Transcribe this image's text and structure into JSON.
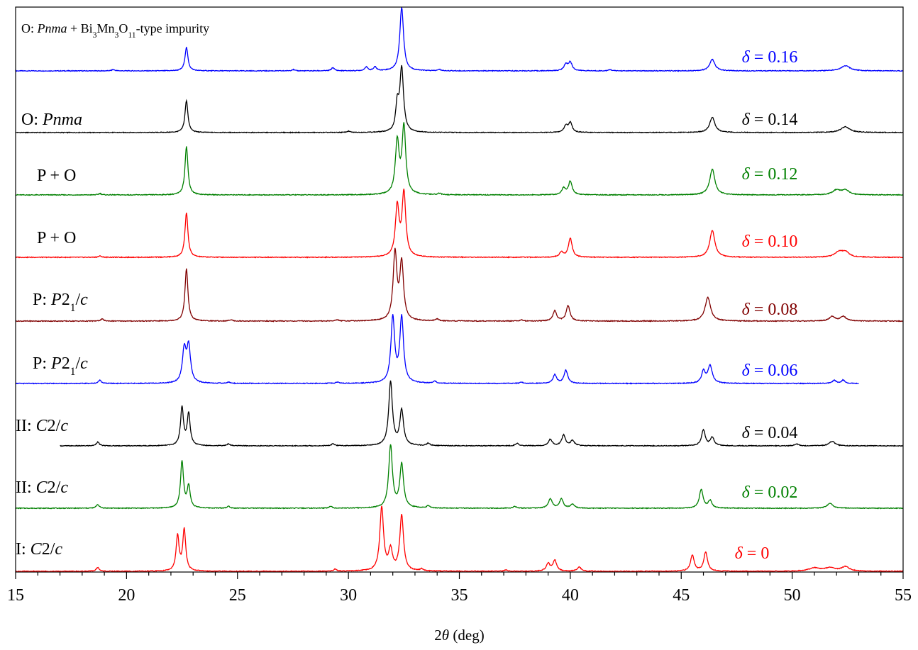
{
  "chart_data": {
    "type": "line",
    "xlabel_parts": [
      {
        "t": "2",
        "i": false
      },
      {
        "t": "θ",
        "i": true
      },
      {
        "t": " (deg)",
        "i": false
      }
    ],
    "xlim": [
      15,
      55
    ],
    "x_ticks": [
      15,
      20,
      25,
      30,
      35,
      40,
      45,
      50,
      55
    ],
    "x_tick_labels": [
      "15",
      "20",
      "25",
      "30",
      "35",
      "40",
      "45",
      "50",
      "55"
    ],
    "y_axis_visible": false,
    "grid": false,
    "series": [
      {
        "color": "#0000ff",
        "x_range": [
          15,
          55
        ],
        "peaks": [
          [
            19.4,
            0.02,
            0.08
          ],
          [
            22.7,
            0.37,
            0.08
          ],
          [
            27.5,
            0.02,
            0.08
          ],
          [
            29.3,
            0.05,
            0.08
          ],
          [
            30.8,
            0.06,
            0.08
          ],
          [
            31.2,
            0.06,
            0.08
          ],
          [
            32.4,
            1.0,
            0.1
          ],
          [
            34.1,
            0.02,
            0.08
          ],
          [
            39.8,
            0.1,
            0.1
          ],
          [
            40.0,
            0.13,
            0.1
          ],
          [
            41.8,
            0.02,
            0.08
          ],
          [
            46.4,
            0.18,
            0.14
          ],
          [
            52.4,
            0.08,
            0.25
          ]
        ],
        "sample_label": "δ = 0.16",
        "phase_label": [
          {
            "t": "O: ",
            "i": false
          },
          {
            "t": "Pnma",
            "i": true
          },
          {
            "t": " + Bi",
            "i": false
          },
          {
            "t": "3",
            "i": false,
            "sub": true
          },
          {
            "t": "Mn",
            "i": false
          },
          {
            "t": "3",
            "i": false,
            "sub": true
          },
          {
            "t": "O",
            "i": false
          },
          {
            "t": "11",
            "i": false,
            "sub": true
          },
          {
            "t": "-type impurity",
            "i": false
          }
        ]
      },
      {
        "color": "#000000",
        "x_range": [
          15,
          55
        ],
        "peaks": [
          [
            22.7,
            0.5,
            0.08
          ],
          [
            30.0,
            0.02,
            0.08
          ],
          [
            32.2,
            0.4,
            0.08
          ],
          [
            32.4,
            1.0,
            0.1
          ],
          [
            39.8,
            0.1,
            0.1
          ],
          [
            40.0,
            0.15,
            0.1
          ],
          [
            46.4,
            0.24,
            0.14
          ],
          [
            52.4,
            0.09,
            0.25
          ]
        ],
        "sample_label": "δ = 0.14",
        "phase_label": [
          {
            "t": "O: ",
            "i": false
          },
          {
            "t": "Pnma",
            "i": true
          }
        ]
      },
      {
        "color": "#008000",
        "x_range": [
          15,
          55
        ],
        "peaks": [
          [
            18.8,
            0.02,
            0.08
          ],
          [
            22.7,
            0.72,
            0.08
          ],
          [
            32.2,
            0.78,
            0.1
          ],
          [
            32.5,
            1.0,
            0.1
          ],
          [
            34.1,
            0.02,
            0.08
          ],
          [
            39.7,
            0.1,
            0.1
          ],
          [
            40.0,
            0.2,
            0.1
          ],
          [
            46.4,
            0.38,
            0.14
          ],
          [
            52.0,
            0.07,
            0.2
          ],
          [
            52.4,
            0.07,
            0.2
          ]
        ],
        "sample_label": "δ = 0.12",
        "phase_label": [
          {
            "t": "P + O",
            "i": false
          }
        ]
      },
      {
        "color": "#ff0000",
        "x_range": [
          15,
          55
        ],
        "peaks": [
          [
            18.8,
            0.02,
            0.08
          ],
          [
            22.7,
            0.7,
            0.08
          ],
          [
            32.2,
            0.78,
            0.1
          ],
          [
            32.5,
            1.0,
            0.1
          ],
          [
            39.6,
            0.08,
            0.1
          ],
          [
            40.0,
            0.3,
            0.1
          ],
          [
            46.4,
            0.42,
            0.14
          ],
          [
            52.1,
            0.08,
            0.2
          ],
          [
            52.4,
            0.08,
            0.2
          ]
        ],
        "sample_label": "δ = 0.10",
        "phase_label": [
          {
            "t": "P + O",
            "i": false
          }
        ]
      },
      {
        "color": "#800000",
        "x_range": [
          15,
          55
        ],
        "peaks": [
          [
            18.9,
            0.03,
            0.08
          ],
          [
            22.7,
            0.78,
            0.08
          ],
          [
            24.7,
            0.02,
            0.08
          ],
          [
            29.5,
            0.02,
            0.08
          ],
          [
            32.1,
            1.0,
            0.1
          ],
          [
            32.4,
            0.85,
            0.1
          ],
          [
            34.0,
            0.03,
            0.08
          ],
          [
            37.8,
            0.02,
            0.08
          ],
          [
            39.3,
            0.15,
            0.1
          ],
          [
            39.9,
            0.23,
            0.1
          ],
          [
            46.2,
            0.35,
            0.15
          ],
          [
            51.8,
            0.07,
            0.15
          ],
          [
            52.3,
            0.07,
            0.15
          ]
        ],
        "sample_label": "δ = 0.08",
        "phase_label": [
          {
            "t": "P: ",
            "i": false
          },
          {
            "t": "P",
            "i": true
          },
          {
            "t": "2",
            "i": false
          },
          {
            "t": "1",
            "i": false,
            "sub": true
          },
          {
            "t": "/",
            "i": false
          },
          {
            "t": "c",
            "i": true
          }
        ]
      },
      {
        "color": "#0000ff",
        "x_range": [
          15,
          53
        ],
        "peaks": [
          [
            18.8,
            0.05,
            0.08
          ],
          [
            22.6,
            0.5,
            0.1
          ],
          [
            22.8,
            0.55,
            0.1
          ],
          [
            24.6,
            0.02,
            0.08
          ],
          [
            29.5,
            0.02,
            0.08
          ],
          [
            32.0,
            1.0,
            0.1
          ],
          [
            32.4,
            1.0,
            0.1
          ],
          [
            33.9,
            0.03,
            0.08
          ],
          [
            37.8,
            0.02,
            0.08
          ],
          [
            39.3,
            0.13,
            0.1
          ],
          [
            39.8,
            0.2,
            0.1
          ],
          [
            46.0,
            0.18,
            0.1
          ],
          [
            46.3,
            0.27,
            0.12
          ],
          [
            51.9,
            0.05,
            0.1
          ],
          [
            52.3,
            0.05,
            0.1
          ]
        ],
        "sample_label": "δ = 0.06",
        "phase_label": [
          {
            "t": "P: ",
            "i": false
          },
          {
            "t": "P",
            "i": true
          },
          {
            "t": "2",
            "i": false
          },
          {
            "t": "1",
            "i": false,
            "sub": true
          },
          {
            "t": "/",
            "i": false
          },
          {
            "t": "c",
            "i": true
          }
        ]
      },
      {
        "color": "#000000",
        "x_range": [
          17,
          55
        ],
        "peaks": [
          [
            18.7,
            0.06,
            0.08
          ],
          [
            22.5,
            0.6,
            0.08
          ],
          [
            22.8,
            0.5,
            0.08
          ],
          [
            24.6,
            0.03,
            0.08
          ],
          [
            29.3,
            0.03,
            0.08
          ],
          [
            31.9,
            1.0,
            0.1
          ],
          [
            32.4,
            0.55,
            0.1
          ],
          [
            33.6,
            0.04,
            0.08
          ],
          [
            37.6,
            0.04,
            0.08
          ],
          [
            39.1,
            0.1,
            0.1
          ],
          [
            39.7,
            0.17,
            0.1
          ],
          [
            40.1,
            0.08,
            0.1
          ],
          [
            46.0,
            0.25,
            0.1
          ],
          [
            46.4,
            0.13,
            0.1
          ],
          [
            50.2,
            0.03,
            0.1
          ],
          [
            51.8,
            0.07,
            0.15
          ]
        ],
        "sample_label": "δ = 0.04",
        "phase_label": [
          {
            "t": "II: ",
            "i": false
          },
          {
            "t": "C",
            "i": true
          },
          {
            "t": "2/",
            "i": false
          },
          {
            "t": "c",
            "i": true
          }
        ]
      },
      {
        "color": "#008000",
        "x_range": [
          15,
          55
        ],
        "peaks": [
          [
            18.7,
            0.06,
            0.08
          ],
          [
            22.5,
            0.75,
            0.08
          ],
          [
            22.8,
            0.35,
            0.08
          ],
          [
            24.6,
            0.03,
            0.08
          ],
          [
            29.2,
            0.03,
            0.08
          ],
          [
            31.9,
            1.0,
            0.1
          ],
          [
            32.4,
            0.7,
            0.1
          ],
          [
            33.6,
            0.04,
            0.08
          ],
          [
            37.5,
            0.03,
            0.08
          ],
          [
            39.1,
            0.15,
            0.1
          ],
          [
            39.6,
            0.15,
            0.1
          ],
          [
            40.1,
            0.06,
            0.1
          ],
          [
            45.9,
            0.3,
            0.1
          ],
          [
            46.3,
            0.12,
            0.1
          ],
          [
            51.7,
            0.08,
            0.15
          ]
        ],
        "sample_label": "δ = 0.02",
        "phase_label": [
          {
            "t": "II: ",
            "i": false
          },
          {
            "t": "C",
            "i": true
          },
          {
            "t": "2/",
            "i": false
          },
          {
            "t": "c",
            "i": true
          }
        ]
      },
      {
        "color": "#ff0000",
        "x_range": [
          15,
          55
        ],
        "peaks": [
          [
            18.7,
            0.06,
            0.08
          ],
          [
            22.3,
            0.55,
            0.08
          ],
          [
            22.6,
            0.65,
            0.08
          ],
          [
            29.4,
            0.03,
            0.08
          ],
          [
            31.5,
            1.0,
            0.1
          ],
          [
            31.9,
            0.32,
            0.1
          ],
          [
            32.4,
            0.87,
            0.1
          ],
          [
            33.3,
            0.03,
            0.08
          ],
          [
            37.1,
            0.02,
            0.08
          ],
          [
            39.0,
            0.12,
            0.1
          ],
          [
            39.3,
            0.17,
            0.1
          ],
          [
            40.4,
            0.07,
            0.1
          ],
          [
            45.5,
            0.25,
            0.1
          ],
          [
            46.1,
            0.3,
            0.1
          ],
          [
            51.0,
            0.05,
            0.3
          ],
          [
            51.7,
            0.05,
            0.3
          ],
          [
            52.4,
            0.07,
            0.2
          ]
        ],
        "sample_label": "δ = 0",
        "phase_label": [
          {
            "t": "I: ",
            "i": false
          },
          {
            "t": "C",
            "i": true
          },
          {
            "t": "2/",
            "i": false
          },
          {
            "t": "c",
            "i": true
          }
        ]
      }
    ]
  }
}
